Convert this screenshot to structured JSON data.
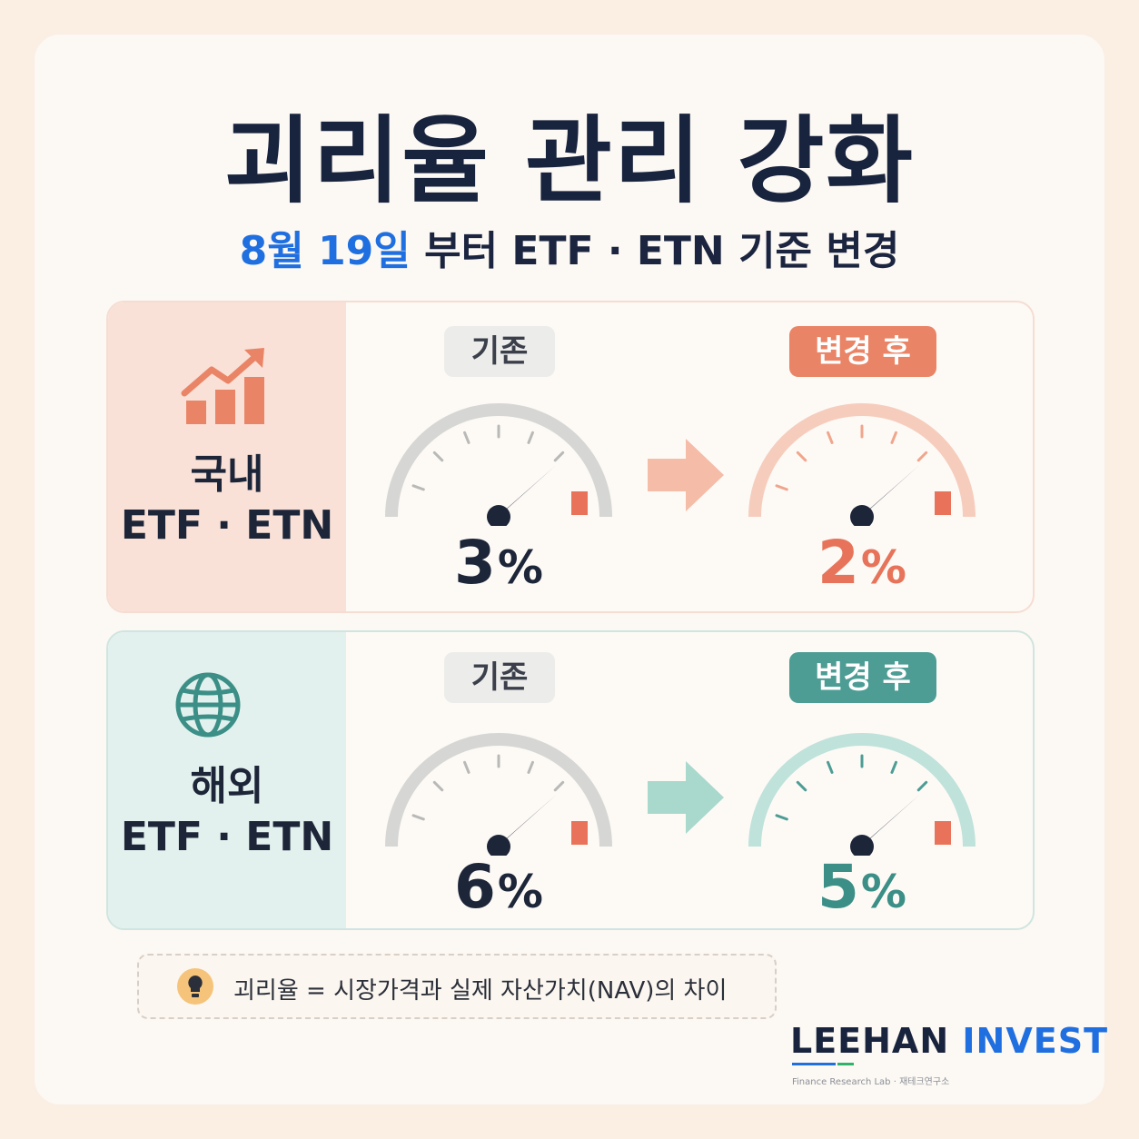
{
  "header": {
    "title": "괴리율 관리 강화",
    "subtitle_date": "8월 19일",
    "subtitle_rest": "부터  ETF · ETN 기준 변경"
  },
  "domestic": {
    "label_line1": "국내",
    "label_line2": "ETF · ETN",
    "icon": "growth-chart-icon",
    "before_label": "기존",
    "after_label": "변경 후",
    "before_value": "3",
    "after_value": "2",
    "unit": "%",
    "accent_color": "#ea8466"
  },
  "overseas": {
    "label_line1": "해외",
    "label_line2": "ETF · ETN",
    "icon": "globe-icon",
    "before_label": "기존",
    "after_label": "변경 후",
    "before_value": "6",
    "after_value": "5",
    "unit": "%",
    "accent_color": "#4d9d95"
  },
  "note": {
    "icon": "lightbulb-icon",
    "text": "괴리율 = 시장가격과 실제 자산가치(NAV)의 차이"
  },
  "brand": {
    "name_part1": "LEEHAN",
    "name_part2": "INVEST",
    "tagline": "Finance Research Lab  ·  재테크연구소",
    "accent_color": "#1f6fe0"
  }
}
